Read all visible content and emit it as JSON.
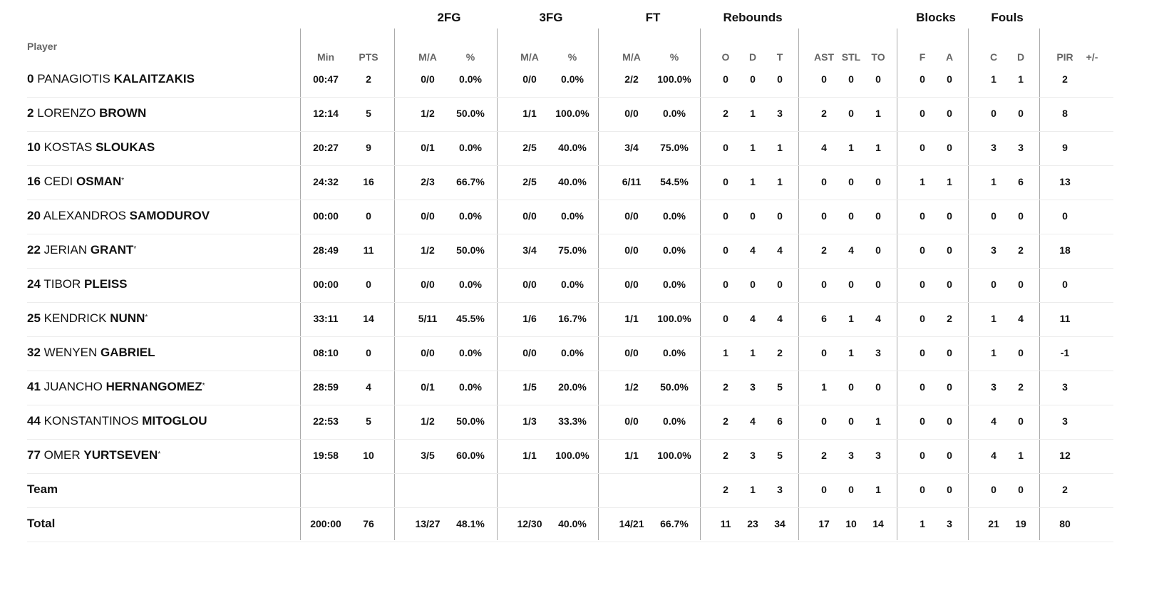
{
  "groups": {
    "fg2": "2FG",
    "fg3": "3FG",
    "ft": "FT",
    "reb": "Rebounds",
    "blk": "Blocks",
    "fouls": "Fouls"
  },
  "headers": {
    "player": "Player",
    "min": "Min",
    "pts": "PTS",
    "fg2_ma": "M/A",
    "fg2_pct": "%",
    "fg3_ma": "M/A",
    "fg3_pct": "%",
    "ft_ma": "M/A",
    "ft_pct": "%",
    "o": "O",
    "d": "D",
    "t": "T",
    "ast": "AST",
    "stl": "STL",
    "to": "TO",
    "f": "F",
    "a": "A",
    "c": "C",
    "fd": "D",
    "pir": "PIR",
    "pm": "+/-"
  },
  "rows": [
    {
      "num": "0",
      "first": "PANAGIOTIS",
      "last": "KALAITZAKIS",
      "starter": "",
      "v": [
        "00:47",
        "2",
        "0/0",
        "0.0%",
        "0/0",
        "0.0%",
        "2/2",
        "100.0%",
        "0",
        "0",
        "0",
        "0",
        "0",
        "0",
        "0",
        "0",
        "1",
        "1",
        "2",
        ""
      ]
    },
    {
      "num": "2",
      "first": "LORENZO",
      "last": "BROWN",
      "starter": "",
      "v": [
        "12:14",
        "5",
        "1/2",
        "50.0%",
        "1/1",
        "100.0%",
        "0/0",
        "0.0%",
        "2",
        "1",
        "3",
        "2",
        "0",
        "1",
        "0",
        "0",
        "0",
        "0",
        "8",
        ""
      ]
    },
    {
      "num": "10",
      "first": "KOSTAS",
      "last": "SLOUKAS",
      "starter": "",
      "v": [
        "20:27",
        "9",
        "0/1",
        "0.0%",
        "2/5",
        "40.0%",
        "3/4",
        "75.0%",
        "0",
        "1",
        "1",
        "4",
        "1",
        "1",
        "0",
        "0",
        "3",
        "3",
        "9",
        ""
      ]
    },
    {
      "num": "16",
      "first": "CEDI",
      "last": "OSMAN",
      "starter": "*",
      "v": [
        "24:32",
        "16",
        "2/3",
        "66.7%",
        "2/5",
        "40.0%",
        "6/11",
        "54.5%",
        "0",
        "1",
        "1",
        "0",
        "0",
        "0",
        "1",
        "1",
        "1",
        "6",
        "13",
        ""
      ]
    },
    {
      "num": "20",
      "first": "ALEXANDROS",
      "last": "SAMODUROV",
      "starter": "",
      "v": [
        "00:00",
        "0",
        "0/0",
        "0.0%",
        "0/0",
        "0.0%",
        "0/0",
        "0.0%",
        "0",
        "0",
        "0",
        "0",
        "0",
        "0",
        "0",
        "0",
        "0",
        "0",
        "0",
        ""
      ]
    },
    {
      "num": "22",
      "first": "JERIAN",
      "last": "GRANT",
      "starter": "*",
      "v": [
        "28:49",
        "11",
        "1/2",
        "50.0%",
        "3/4",
        "75.0%",
        "0/0",
        "0.0%",
        "0",
        "4",
        "4",
        "2",
        "4",
        "0",
        "0",
        "0",
        "3",
        "2",
        "18",
        ""
      ]
    },
    {
      "num": "24",
      "first": "TIBOR",
      "last": "PLEISS",
      "starter": "",
      "v": [
        "00:00",
        "0",
        "0/0",
        "0.0%",
        "0/0",
        "0.0%",
        "0/0",
        "0.0%",
        "0",
        "0",
        "0",
        "0",
        "0",
        "0",
        "0",
        "0",
        "0",
        "0",
        "0",
        ""
      ]
    },
    {
      "num": "25",
      "first": "KENDRICK",
      "last": "NUNN",
      "starter": "*",
      "v": [
        "33:11",
        "14",
        "5/11",
        "45.5%",
        "1/6",
        "16.7%",
        "1/1",
        "100.0%",
        "0",
        "4",
        "4",
        "6",
        "1",
        "4",
        "0",
        "2",
        "1",
        "4",
        "11",
        ""
      ]
    },
    {
      "num": "32",
      "first": "WENYEN",
      "last": "GABRIEL",
      "starter": "",
      "v": [
        "08:10",
        "0",
        "0/0",
        "0.0%",
        "0/0",
        "0.0%",
        "0/0",
        "0.0%",
        "1",
        "1",
        "2",
        "0",
        "1",
        "3",
        "0",
        "0",
        "1",
        "0",
        "-1",
        ""
      ]
    },
    {
      "num": "41",
      "first": "JUANCHO",
      "last": "HERNANGOMEZ",
      "starter": "*",
      "v": [
        "28:59",
        "4",
        "0/1",
        "0.0%",
        "1/5",
        "20.0%",
        "1/2",
        "50.0%",
        "2",
        "3",
        "5",
        "1",
        "0",
        "0",
        "0",
        "0",
        "3",
        "2",
        "3",
        ""
      ]
    },
    {
      "num": "44",
      "first": "KONSTANTINOS",
      "last": "MITOGLOU",
      "starter": "",
      "v": [
        "22:53",
        "5",
        "1/2",
        "50.0%",
        "1/3",
        "33.3%",
        "0/0",
        "0.0%",
        "2",
        "4",
        "6",
        "0",
        "0",
        "1",
        "0",
        "0",
        "4",
        "0",
        "3",
        ""
      ]
    },
    {
      "num": "77",
      "first": "OMER",
      "last": "YURTSEVEN",
      "starter": "*",
      "v": [
        "19:58",
        "10",
        "3/5",
        "60.0%",
        "1/1",
        "100.0%",
        "1/1",
        "100.0%",
        "2",
        "3",
        "5",
        "2",
        "3",
        "3",
        "0",
        "0",
        "4",
        "1",
        "12",
        ""
      ]
    },
    {
      "num": "",
      "first": "",
      "last": "Team",
      "starter": "",
      "v": [
        "",
        "",
        "",
        "",
        "",
        "",
        "",
        "",
        "2",
        "1",
        "3",
        "0",
        "0",
        "1",
        "0",
        "0",
        "0",
        "0",
        "2",
        ""
      ]
    },
    {
      "num": "",
      "first": "",
      "last": "Total",
      "starter": "",
      "v": [
        "200:00",
        "76",
        "13/27",
        "48.1%",
        "12/30",
        "40.0%",
        "14/21",
        "66.7%",
        "11",
        "23",
        "34",
        "17",
        "10",
        "14",
        "1",
        "3",
        "21",
        "19",
        "80",
        ""
      ]
    }
  ]
}
